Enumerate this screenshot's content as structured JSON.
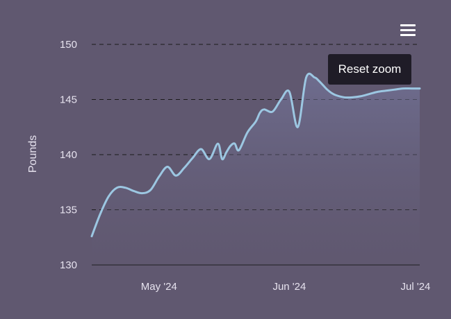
{
  "chart_data": {
    "type": "area",
    "title": "",
    "xlabel": "",
    "ylabel": "Pounds",
    "ylim": [
      130,
      150
    ],
    "yticks": [
      130,
      135,
      140,
      145,
      150
    ],
    "xlim": [
      "2024-04-15",
      "2024-07-02"
    ],
    "xticks": [
      {
        "date": "2024-05-01",
        "label": "May '24"
      },
      {
        "date": "2024-06-01",
        "label": "Jun '24"
      },
      {
        "date": "2024-07-01",
        "label": "Jul '24"
      }
    ],
    "grid": true,
    "series": [
      {
        "name": "",
        "x": [
          "2024-04-15",
          "2024-04-17",
          "2024-04-19",
          "2024-04-21",
          "2024-04-23",
          "2024-04-25",
          "2024-04-27",
          "2024-04-29",
          "2024-05-01",
          "2024-05-03",
          "2024-05-05",
          "2024-05-07",
          "2024-05-09",
          "2024-05-11",
          "2024-05-13",
          "2024-05-15",
          "2024-05-16",
          "2024-05-17",
          "2024-05-18",
          "2024-05-19",
          "2024-05-20",
          "2024-05-22",
          "2024-05-24",
          "2024-05-25",
          "2024-05-26",
          "2024-05-28",
          "2024-05-30",
          "2024-06-01",
          "2024-06-03",
          "2024-06-05",
          "2024-06-07",
          "2024-06-08",
          "2024-06-09",
          "2024-06-10",
          "2024-06-11",
          "2024-06-12",
          "2024-06-14",
          "2024-06-16",
          "2024-06-18",
          "2024-06-20",
          "2024-06-22",
          "2024-06-24",
          "2024-06-26",
          "2024-06-28",
          "2024-06-30",
          "2024-07-02"
        ],
        "y": [
          132.6,
          134.6,
          136.2,
          137.0,
          137.0,
          136.7,
          136.5,
          136.8,
          138.0,
          138.9,
          138.1,
          138.8,
          139.7,
          140.5,
          139.6,
          141.0,
          139.6,
          140.2,
          140.8,
          141.0,
          140.4,
          142.0,
          143.0,
          143.8,
          144.1,
          143.9,
          145.0,
          145.7,
          142.5,
          147.0,
          147.0,
          146.7,
          146.3,
          145.9,
          145.6,
          145.4,
          145.2,
          145.2,
          145.3,
          145.5,
          145.7,
          145.8,
          145.9,
          146.0,
          146.0,
          146.0
        ]
      }
    ],
    "colors": {
      "line": "#9cc7e2",
      "background": "#605870",
      "grid": "#1a1a1a"
    }
  },
  "toolbar": {
    "menu_icon": "hamburger-menu-icon",
    "reset_zoom_label": "Reset zoom"
  }
}
